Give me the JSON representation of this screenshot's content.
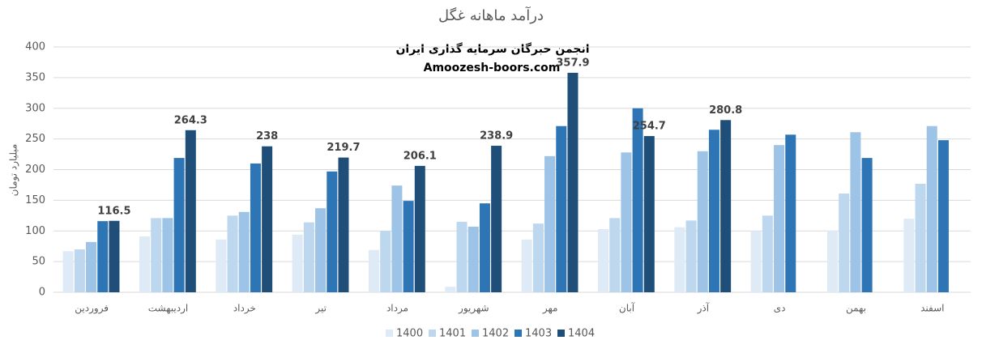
{
  "chart_data": {
    "type": "bar",
    "title": "درآمد ماهانه غگل",
    "annotations": [
      "انجمن خبرگان سرمایه گذاری ایران",
      "Amoozesh-boors.com"
    ],
    "y_label": "میلیارد تومان",
    "categories": [
      "فروردین",
      "اردیبهشت",
      "خرداد",
      "تیر",
      "مرداد",
      "شهریور",
      "مهر",
      "آبان",
      "آذر",
      "دی",
      "بهمن",
      "اسفند"
    ],
    "series": [
      {
        "name": "1400",
        "color": "#deebf7",
        "values": [
          67,
          91,
          86,
          94,
          69,
          9,
          86,
          103,
          106,
          100,
          101,
          120
        ]
      },
      {
        "name": "1401",
        "color": "#bdd7ee",
        "values": [
          70,
          121,
          125,
          114,
          100,
          115,
          112,
          121,
          117,
          125,
          161,
          177
        ]
      },
      {
        "name": "1402",
        "color": "#9dc3e6",
        "values": [
          82,
          121,
          131,
          137,
          174,
          107,
          222,
          228,
          230,
          240,
          261,
          271
        ]
      },
      {
        "name": "1403",
        "color": "#2e75b6",
        "values": [
          116,
          219,
          210,
          197,
          149,
          145,
          271,
          300,
          265,
          257,
          219,
          248
        ]
      },
      {
        "name": "1404",
        "color": "#1f4e79",
        "values": [
          116.5,
          264.3,
          238,
          219.7,
          206.1,
          238.9,
          357.9,
          254.7,
          280.8,
          null,
          null,
          null
        ],
        "show_labels": true
      }
    ],
    "ylim": [
      0,
      400
    ],
    "yticks": [
      0,
      50,
      100,
      150,
      200,
      250,
      300,
      350,
      400
    ],
    "grid": true,
    "legend": "bottom"
  }
}
